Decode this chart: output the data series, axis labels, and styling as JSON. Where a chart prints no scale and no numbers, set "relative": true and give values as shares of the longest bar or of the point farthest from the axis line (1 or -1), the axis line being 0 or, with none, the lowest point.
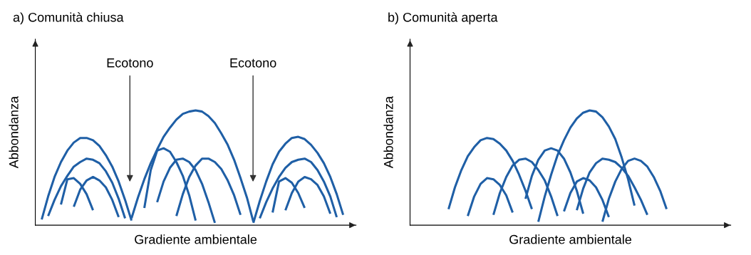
{
  "chart_data": [
    {
      "type": "line",
      "relative": true,
      "title": "a) Comunità chiusa",
      "xlabel": "Gradiente ambientale",
      "ylabel": "Abbondanza",
      "annotations": [
        "Ecotono",
        "Ecotono"
      ],
      "categories": [
        null,
        null,
        null,
        null,
        null,
        null,
        null,
        null,
        null,
        null,
        null,
        null,
        null,
        null,
        null,
        null,
        null,
        null,
        null,
        null,
        null,
        null,
        null,
        null,
        null,
        null,
        null,
        null,
        null,
        null,
        null,
        null,
        null,
        null,
        null,
        null,
        null,
        null,
        null,
        null,
        null,
        null,
        null,
        null,
        null,
        null,
        null,
        null,
        null,
        null,
        null
      ],
      "series": [
        {
          "color": "#1f5fa6",
          "values": [
            null,
            0.05,
            0.25,
            0.42,
            0.55,
            0.65,
            0.72,
            0.76,
            0.76,
            0.74,
            0.69,
            0.61,
            0.51,
            0.38,
            0.22,
            0.04,
            null,
            null,
            null,
            null,
            null,
            null,
            null,
            null,
            null,
            null,
            null,
            null,
            null,
            null,
            null,
            null,
            null,
            null,
            null,
            null,
            null,
            null,
            null,
            null,
            null,
            null,
            null,
            null,
            null,
            null,
            null,
            null,
            null,
            null,
            null
          ]
        },
        {
          "color": "#1f5fa6",
          "values": [
            null,
            null,
            0.08,
            0.22,
            0.34,
            0.43,
            0.51,
            0.55,
            0.58,
            0.57,
            0.54,
            0.47,
            0.37,
            0.23,
            0.06,
            null,
            null,
            null,
            null,
            null,
            null,
            null,
            null,
            null,
            null,
            null,
            null,
            null,
            null,
            null,
            null,
            null,
            null,
            null,
            null,
            null,
            null,
            null,
            null,
            null,
            null,
            null,
            null,
            null,
            null,
            null,
            null,
            null,
            null,
            null,
            null
          ]
        },
        {
          "color": "#1f5fa6",
          "values": [
            null,
            null,
            null,
            null,
            0.18,
            0.4,
            0.41,
            0.36,
            0.27,
            0.13,
            null,
            null,
            null,
            null,
            null,
            null,
            null,
            null,
            null,
            null,
            null,
            null,
            null,
            null,
            null,
            null,
            null,
            null,
            null,
            null,
            null,
            null,
            null,
            null,
            null,
            null,
            null,
            null,
            null,
            null,
            null,
            null,
            null,
            null,
            null,
            null,
            null,
            null,
            null,
            null,
            null
          ]
        },
        {
          "color": "#1f5fa6",
          "values": [
            null,
            null,
            null,
            null,
            null,
            null,
            0.16,
            0.31,
            0.39,
            0.42,
            0.39,
            0.33,
            0.22,
            0.07,
            null,
            null,
            null,
            null,
            null,
            null,
            null,
            null,
            null,
            null,
            null,
            null,
            null,
            null,
            null,
            null,
            null,
            null,
            null,
            null,
            null,
            null,
            null,
            null,
            null,
            null,
            null,
            null,
            null,
            null,
            null,
            null,
            null,
            null,
            null,
            null,
            null
          ]
        },
        {
          "color": "#1f5fa6",
          "values": [
            null,
            null,
            null,
            null,
            null,
            null,
            null,
            null,
            null,
            null,
            null,
            null,
            null,
            null,
            null,
            0.06,
            0.24,
            0.4,
            0.54,
            0.66,
            0.77,
            0.85,
            0.92,
            0.97,
            0.99,
            1.0,
            0.99,
            0.95,
            0.89,
            0.8,
            0.7,
            0.57,
            0.41,
            0.24,
            0.03,
            null,
            null,
            null,
            null,
            null,
            null,
            null,
            null,
            null,
            null,
            null,
            null,
            null,
            null,
            null,
            null
          ]
        },
        {
          "color": "#1f5fa6",
          "values": [
            null,
            null,
            null,
            null,
            null,
            null,
            null,
            null,
            null,
            null,
            null,
            null,
            null,
            null,
            null,
            null,
            null,
            0.15,
            0.48,
            0.65,
            0.67,
            0.64,
            0.55,
            0.43,
            0.26,
            0.04,
            null,
            null,
            null,
            null,
            null,
            null,
            null,
            null,
            null,
            null,
            null,
            null,
            null,
            null,
            null,
            null,
            null,
            null,
            null,
            null,
            null,
            null,
            null,
            null,
            null
          ]
        },
        {
          "color": "#1f5fa6",
          "values": [
            null,
            null,
            null,
            null,
            null,
            null,
            null,
            null,
            null,
            null,
            null,
            null,
            null,
            null,
            null,
            null,
            null,
            null,
            null,
            0.2,
            0.38,
            0.5,
            0.57,
            0.58,
            0.55,
            0.48,
            0.36,
            0.2,
            0.02,
            null,
            null,
            null,
            null,
            null,
            null,
            null,
            null,
            null,
            null,
            null,
            null,
            null,
            null,
            null,
            null,
            null,
            null,
            null,
            null,
            null,
            null
          ]
        },
        {
          "color": "#1f5fa6",
          "values": [
            null,
            null,
            null,
            null,
            null,
            null,
            null,
            null,
            null,
            null,
            null,
            null,
            null,
            null,
            null,
            null,
            null,
            null,
            null,
            null,
            null,
            null,
            0.08,
            0.27,
            0.42,
            0.52,
            0.58,
            0.58,
            0.55,
            0.49,
            0.39,
            0.26,
            0.09,
            null,
            null,
            null,
            null,
            null,
            null,
            null,
            null,
            null,
            null,
            null,
            null,
            null,
            null,
            null,
            null,
            null,
            null
          ]
        },
        {
          "color": "#1f5fa6",
          "values": [
            null,
            null,
            null,
            null,
            null,
            null,
            null,
            null,
            null,
            null,
            null,
            null,
            null,
            null,
            null,
            null,
            null,
            null,
            null,
            null,
            null,
            null,
            null,
            null,
            null,
            null,
            null,
            null,
            null,
            null,
            null,
            null,
            null,
            null,
            0.02,
            0.21,
            0.38,
            0.53,
            0.64,
            0.71,
            0.76,
            0.77,
            0.75,
            0.7,
            0.63,
            0.54,
            0.42,
            0.27,
            0.09,
            null,
            null
          ]
        },
        {
          "color": "#1f5fa6",
          "values": [
            null,
            null,
            null,
            null,
            null,
            null,
            null,
            null,
            null,
            null,
            null,
            null,
            null,
            null,
            null,
            null,
            null,
            null,
            null,
            null,
            null,
            null,
            null,
            null,
            null,
            null,
            null,
            null,
            null,
            null,
            null,
            null,
            null,
            null,
            null,
            0.06,
            0.2,
            0.32,
            0.42,
            0.5,
            0.55,
            0.57,
            0.58,
            0.55,
            0.48,
            0.38,
            0.25,
            0.07,
            null,
            null,
            null
          ]
        },
        {
          "color": "#1f5fa6",
          "values": [
            null,
            null,
            null,
            null,
            null,
            null,
            null,
            null,
            null,
            null,
            null,
            null,
            null,
            null,
            null,
            null,
            null,
            null,
            null,
            null,
            null,
            null,
            null,
            null,
            null,
            null,
            null,
            null,
            null,
            null,
            null,
            null,
            null,
            null,
            null,
            null,
            null,
            0.11,
            0.38,
            0.41,
            0.37,
            0.28,
            0.15,
            null,
            null,
            null,
            null,
            null,
            null,
            null,
            null
          ]
        },
        {
          "color": "#1f5fa6",
          "values": [
            null,
            null,
            null,
            null,
            null,
            null,
            null,
            null,
            null,
            null,
            null,
            null,
            null,
            null,
            null,
            null,
            null,
            null,
            null,
            null,
            null,
            null,
            null,
            null,
            null,
            null,
            null,
            null,
            null,
            null,
            null,
            null,
            null,
            null,
            null,
            null,
            null,
            null,
            null,
            0.13,
            0.28,
            0.38,
            0.42,
            0.4,
            0.35,
            0.25,
            0.1,
            null,
            null,
            null,
            null
          ]
        }
      ]
    },
    {
      "type": "line",
      "relative": true,
      "title": "b) Comunità aperta",
      "xlabel": "Gradiente ambientale",
      "ylabel": "Abbondanza",
      "categories": [
        null,
        null,
        null,
        null,
        null,
        null,
        null,
        null,
        null,
        null,
        null,
        null,
        null,
        null,
        null,
        null,
        null,
        null,
        null,
        null,
        null,
        null,
        null,
        null,
        null,
        null,
        null,
        null,
        null,
        null,
        null,
        null,
        null,
        null,
        null,
        null,
        null,
        null,
        null,
        null,
        null,
        null,
        null,
        null,
        null,
        null,
        null,
        null,
        null,
        null,
        null
      ],
      "series": [
        {
          "color": "#1f5fa6",
          "values": [
            null,
            null,
            null,
            null,
            null,
            null,
            0.14,
            0.33,
            0.48,
            0.6,
            0.68,
            0.74,
            0.76,
            0.75,
            0.71,
            0.65,
            0.56,
            0.44,
            0.3,
            0.14,
            null,
            null,
            null,
            null,
            null,
            null,
            null,
            null,
            null,
            null,
            null,
            null,
            null,
            null,
            null,
            null,
            null,
            null,
            null,
            null,
            null,
            null,
            null,
            null,
            null,
            null,
            null,
            null,
            null,
            null,
            null
          ]
        },
        {
          "color": "#1f5fa6",
          "values": [
            null,
            null,
            null,
            null,
            null,
            null,
            null,
            null,
            null,
            0.08,
            0.25,
            0.36,
            0.41,
            0.4,
            0.35,
            0.26,
            0.11,
            null,
            null,
            null,
            null,
            null,
            null,
            null,
            null,
            null,
            null,
            null,
            null,
            null,
            null,
            null,
            null,
            null,
            null,
            null,
            null,
            null,
            null,
            null,
            null,
            null,
            null,
            null,
            null,
            null,
            null,
            null,
            null,
            null,
            null
          ]
        },
        {
          "color": "#1f5fa6",
          "values": [
            null,
            null,
            null,
            null,
            null,
            null,
            null,
            null,
            null,
            null,
            null,
            null,
            null,
            0.09,
            0.28,
            0.42,
            0.52,
            0.57,
            0.58,
            0.55,
            0.48,
            0.39,
            0.25,
            0.08,
            null,
            null,
            null,
            null,
            null,
            null,
            null,
            null,
            null,
            null,
            null,
            null,
            null,
            null,
            null,
            null,
            null,
            null,
            null,
            null,
            null,
            null,
            null,
            null,
            null,
            null,
            null
          ]
        },
        {
          "color": "#1f5fa6",
          "values": [
            null,
            null,
            null,
            null,
            null,
            null,
            null,
            null,
            null,
            null,
            null,
            null,
            null,
            null,
            null,
            null,
            null,
            null,
            0.23,
            0.43,
            0.57,
            0.65,
            0.67,
            0.65,
            0.58,
            0.46,
            0.3,
            0.1,
            null,
            null,
            null,
            null,
            null,
            null,
            null,
            null,
            null,
            null,
            null,
            null,
            null,
            null,
            null,
            null,
            null,
            null,
            null,
            null,
            null,
            null,
            null
          ]
        },
        {
          "color": "#1f5fa6",
          "values": [
            null,
            null,
            null,
            null,
            null,
            null,
            null,
            null,
            null,
            null,
            null,
            null,
            null,
            null,
            null,
            null,
            null,
            null,
            null,
            null,
            0.03,
            0.25,
            0.44,
            0.61,
            0.74,
            0.85,
            0.93,
            0.98,
            1.0,
            0.99,
            0.94,
            0.86,
            0.75,
            0.59,
            0.4,
            0.17,
            null,
            null,
            null,
            null,
            null,
            null,
            null,
            null,
            null,
            null,
            null,
            null,
            null,
            null,
            null
          ]
        },
        {
          "color": "#1f5fa6",
          "values": [
            null,
            null,
            null,
            null,
            null,
            null,
            null,
            null,
            null,
            null,
            null,
            null,
            null,
            null,
            null,
            null,
            null,
            null,
            null,
            null,
            null,
            null,
            null,
            null,
            0.12,
            0.28,
            0.38,
            0.41,
            0.39,
            0.33,
            0.22,
            0.07,
            null,
            null,
            null,
            null,
            null,
            null,
            null,
            null,
            null,
            null,
            null,
            null,
            null,
            null,
            null,
            null,
            null,
            null,
            null
          ]
        },
        {
          "color": "#1f5fa6",
          "values": [
            null,
            null,
            null,
            null,
            null,
            null,
            null,
            null,
            null,
            null,
            null,
            null,
            null,
            null,
            null,
            null,
            null,
            null,
            null,
            null,
            null,
            null,
            null,
            null,
            null,
            null,
            0.13,
            0.32,
            0.46,
            0.54,
            0.58,
            0.57,
            0.55,
            0.5,
            0.43,
            0.33,
            0.22,
            0.09,
            null,
            null,
            null,
            null,
            null,
            null,
            null,
            null,
            null,
            null,
            null,
            null,
            null
          ]
        },
        {
          "color": "#1f5fa6",
          "values": [
            null,
            null,
            null,
            null,
            null,
            null,
            null,
            null,
            null,
            null,
            null,
            null,
            null,
            null,
            null,
            null,
            null,
            null,
            null,
            null,
            null,
            null,
            null,
            null,
            null,
            null,
            null,
            null,
            null,
            null,
            0.03,
            0.23,
            0.38,
            0.49,
            0.56,
            0.58,
            0.56,
            0.51,
            0.42,
            0.3,
            0.14,
            null,
            null,
            null,
            null,
            null,
            null,
            null,
            null,
            null,
            null
          ]
        }
      ]
    }
  ]
}
